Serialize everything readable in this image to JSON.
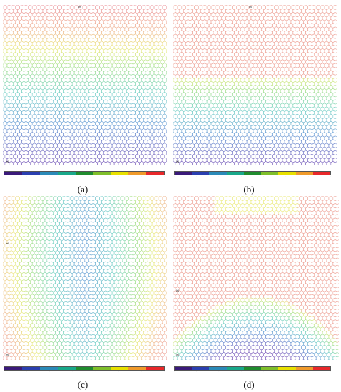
{
  "colors": {
    "scale": [
      "#3a1a7a",
      "#2a3fb0",
      "#2a8ab8",
      "#19a88a",
      "#1f8c2e",
      "#7fbf2a",
      "#e8e000",
      "#f09a2a",
      "#e8282a"
    ],
    "mesh_line": "#9a9ad0"
  },
  "panels": [
    {
      "id": "a",
      "caption": "(a)",
      "pattern": "horizontal-gradient-top-warm"
    },
    {
      "id": "b",
      "caption": "(b)",
      "pattern": "horizontal-gradient-yellow-band-middle"
    },
    {
      "id": "c",
      "caption": "(c)",
      "pattern": "vertical-arcs-sides"
    },
    {
      "id": "d",
      "caption": "(d)",
      "pattern": "dome-bottom-arc-top"
    }
  ]
}
